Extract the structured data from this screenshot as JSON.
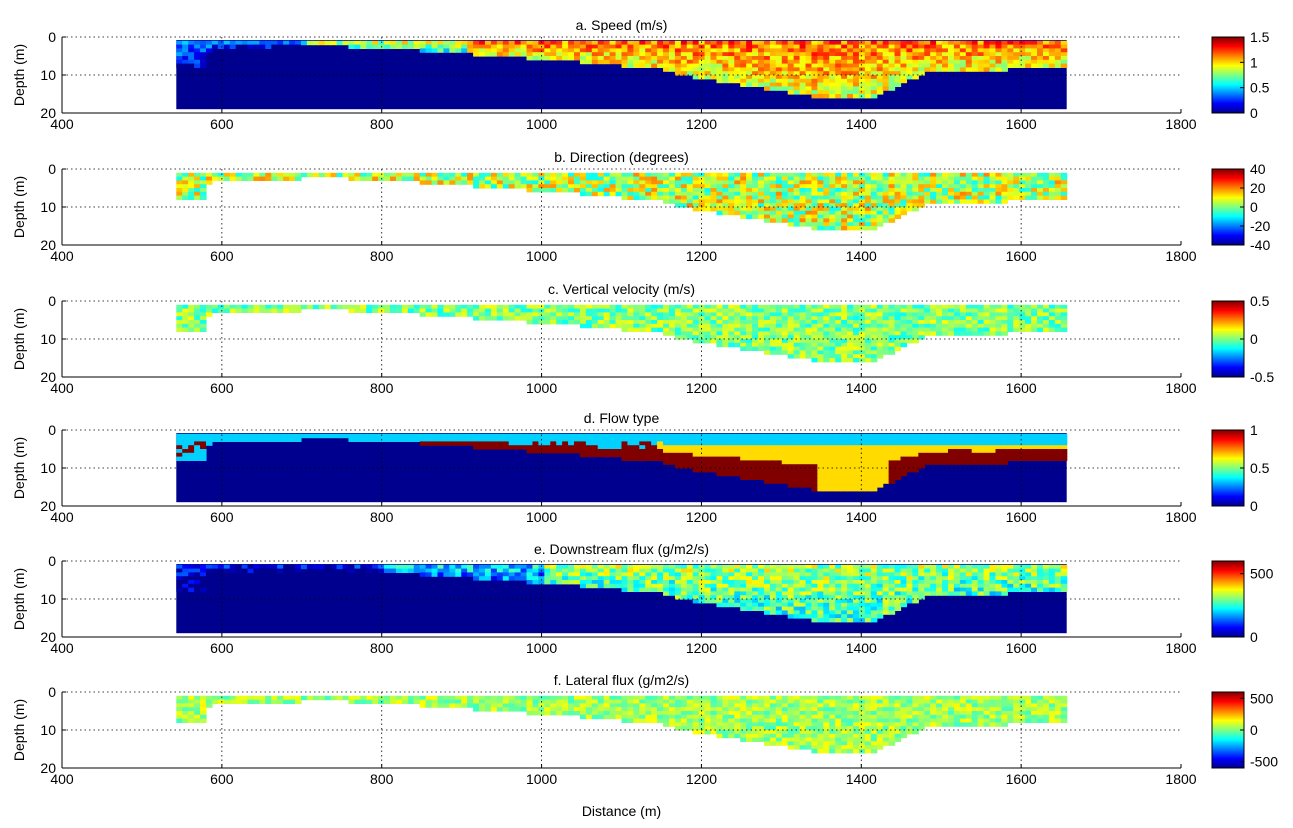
{
  "figure": {
    "xlabel": "Distance (m)",
    "ylabel": "Depth (m)",
    "xlim": [
      400,
      1800
    ],
    "xticks": [
      400,
      600,
      800,
      1000,
      1200,
      1400,
      1600,
      1800
    ],
    "ylim": [
      0,
      20
    ],
    "yticks": [
      0,
      10,
      20
    ],
    "y_reversed": true,
    "grid": "dotted",
    "colormap": "jet",
    "colormap_stops": [
      "#00008f",
      "#0000ff",
      "#0080ff",
      "#00ffff",
      "#80ff80",
      "#ffff00",
      "#ff8000",
      "#ff0000",
      "#800000"
    ]
  },
  "chart_data": [
    {
      "type": "heatmap",
      "title": "a. Speed (m/s)",
      "clim": [
        0,
        1.5
      ],
      "colorbar_ticks": [
        "0",
        "0.5",
        "1",
        "1.5"
      ],
      "colorbar_tick_values": [
        0,
        0.5,
        1,
        1.5
      ],
      "field": "speed",
      "background_color": "#00008f",
      "mean_value": 1.0,
      "variability": 0.4
    },
    {
      "type": "heatmap",
      "title": "b. Direction (degrees)",
      "clim": [
        -40,
        40
      ],
      "colorbar_ticks": [
        "-40",
        "-20",
        "0",
        "20",
        "40"
      ],
      "colorbar_tick_values": [
        -40,
        -20,
        0,
        20,
        40
      ],
      "field": "direction",
      "background_color": "#ffffff",
      "mean_value": 5,
      "variability": 15
    },
    {
      "type": "heatmap",
      "title": "c. Vertical velocity (m/s)",
      "clim": [
        -0.5,
        0.5
      ],
      "colorbar_ticks": [
        "-0.5",
        "0",
        "0.5"
      ],
      "colorbar_tick_values": [
        -0.5,
        0,
        0.5
      ],
      "field": "vertical_velocity",
      "background_color": "#ffffff",
      "mean_value": 0.0,
      "variability": 0.12
    },
    {
      "type": "heatmap",
      "title": "d. Flow type",
      "clim": [
        0,
        1
      ],
      "colorbar_ticks": [
        "0",
        "0.5",
        "1"
      ],
      "colorbar_tick_values": [
        0,
        0.5,
        1
      ],
      "field": "flow_type",
      "background_color": "#00008f",
      "levels": [
        0.33,
        0.66,
        1.0
      ]
    },
    {
      "type": "heatmap",
      "title": "e. Downstream flux (g/m2/s)",
      "clim": [
        0,
        600
      ],
      "colorbar_ticks": [
        "0",
        "500"
      ],
      "colorbar_tick_values": [
        0,
        500
      ],
      "field": "downstream_flux",
      "background_color": "#00008f",
      "mean_value": 280,
      "variability": 90
    },
    {
      "type": "heatmap",
      "title": "f. Lateral flux (g/m2/s)",
      "clim": [
        -600,
        600
      ],
      "colorbar_ticks": [
        "-500",
        "0",
        "500"
      ],
      "colorbar_tick_values": [
        -500,
        0,
        500
      ],
      "field": "lateral_flux",
      "background_color": "#ffffff",
      "mean_value": 40,
      "variability": 120
    }
  ],
  "section": {
    "x_start": 543,
    "x_end": 1657,
    "surface_depth": 1,
    "bed_profile": [
      [
        543,
        8
      ],
      [
        580,
        8
      ],
      [
        585,
        2.5
      ],
      [
        700,
        2
      ],
      [
        760,
        2
      ],
      [
        850,
        3
      ],
      [
        950,
        4.5
      ],
      [
        1050,
        6
      ],
      [
        1150,
        8
      ],
      [
        1200,
        10.5
      ],
      [
        1280,
        13
      ],
      [
        1340,
        15
      ],
      [
        1380,
        16
      ],
      [
        1420,
        15
      ],
      [
        1450,
        12
      ],
      [
        1480,
        9
      ],
      [
        1520,
        8
      ],
      [
        1560,
        8.5
      ],
      [
        1600,
        7.5
      ],
      [
        1657,
        7
      ]
    ]
  }
}
